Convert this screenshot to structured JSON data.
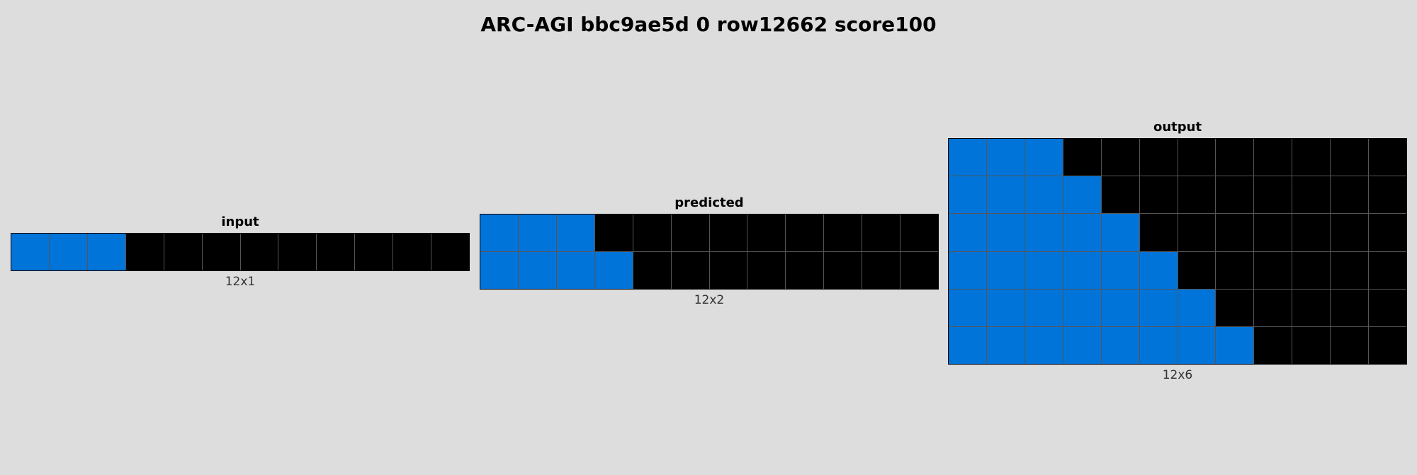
{
  "title": "ARC-AGI bbc9ae5d 0 row12662 score100",
  "palette": {
    "0": "#000000",
    "1": "#0074d9"
  },
  "panels": [
    {
      "id": "input",
      "label": "input",
      "dims": "12x1",
      "grid": [
        [
          1,
          1,
          1,
          0,
          0,
          0,
          0,
          0,
          0,
          0,
          0,
          0
        ]
      ]
    },
    {
      "id": "predicted",
      "label": "predicted",
      "dims": "12x2",
      "grid": [
        [
          1,
          1,
          1,
          0,
          0,
          0,
          0,
          0,
          0,
          0,
          0,
          0
        ],
        [
          1,
          1,
          1,
          1,
          0,
          0,
          0,
          0,
          0,
          0,
          0,
          0
        ]
      ]
    },
    {
      "id": "output",
      "label": "output",
      "dims": "12x6",
      "grid": [
        [
          1,
          1,
          1,
          0,
          0,
          0,
          0,
          0,
          0,
          0,
          0,
          0
        ],
        [
          1,
          1,
          1,
          1,
          0,
          0,
          0,
          0,
          0,
          0,
          0,
          0
        ],
        [
          1,
          1,
          1,
          1,
          1,
          0,
          0,
          0,
          0,
          0,
          0,
          0
        ],
        [
          1,
          1,
          1,
          1,
          1,
          1,
          0,
          0,
          0,
          0,
          0,
          0
        ],
        [
          1,
          1,
          1,
          1,
          1,
          1,
          1,
          0,
          0,
          0,
          0,
          0
        ],
        [
          1,
          1,
          1,
          1,
          1,
          1,
          1,
          1,
          0,
          0,
          0,
          0
        ]
      ]
    }
  ]
}
